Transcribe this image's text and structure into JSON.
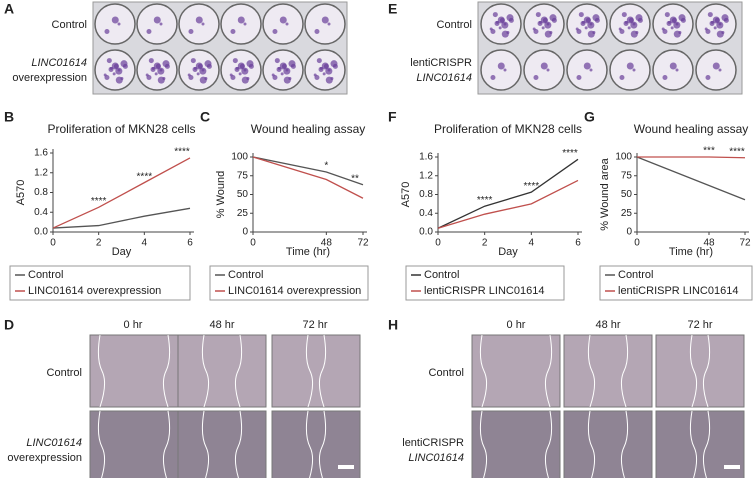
{
  "panel_letters": [
    "A",
    "B",
    "C",
    "D",
    "E",
    "F",
    "G",
    "H"
  ],
  "plate_A": {
    "rows": [
      [
        "Control"
      ],
      [
        "LINC01614",
        "overexpression"
      ]
    ]
  },
  "plate_E": {
    "rows": [
      [
        "Control"
      ],
      [
        "lentiCRISPR",
        "LINC01614"
      ]
    ]
  },
  "micro_D": {
    "columns": [
      "0 hr",
      "48 hr",
      "72 hr"
    ],
    "rows": [
      [
        "Control"
      ],
      [
        "LINC01614",
        "overexpression"
      ]
    ]
  },
  "micro_H": {
    "columns": [
      "0 hr",
      "48 hr",
      "72 hr"
    ],
    "rows": [
      [
        "Control"
      ],
      [
        "lentiCRISPR",
        "LINC01614"
      ]
    ]
  },
  "chart_data": [
    {
      "type": "line",
      "title": "Proliferation of MKN28 cells",
      "xlabel": "Day",
      "ylabel": "A570",
      "x": [
        0,
        2,
        4,
        6
      ],
      "xlim": [
        0,
        6
      ],
      "xticks": [
        0,
        2,
        4,
        6
      ],
      "ylim": [
        0,
        1.6
      ],
      "yticks": [
        {
          "value": 0,
          "label": "0.0"
        },
        0.4,
        0.8,
        1.2,
        1.6
      ],
      "series": [
        {
          "name": "Control",
          "color": "#555555",
          "values": [
            0.08,
            0.13,
            0.32,
            0.48
          ]
        },
        {
          "name": "LINC01614 overexpression",
          "color": "#c0504d",
          "values": [
            0.08,
            0.5,
            1.0,
            1.5
          ]
        }
      ],
      "annotations": [
        {
          "x": 2,
          "text": "****"
        },
        {
          "x": 4,
          "text": "****"
        },
        {
          "x": 6,
          "text": "****"
        }
      ]
    },
    {
      "type": "line",
      "title": "Wound healing assay",
      "xlabel": "Time (hr)",
      "ylabel": "% Wound",
      "x": [
        0,
        48,
        72
      ],
      "xlim": [
        0,
        72
      ],
      "xticks": [
        0,
        48,
        72
      ],
      "ylim": [
        0,
        100
      ],
      "yticks": [
        0,
        25,
        50,
        75,
        100
      ],
      "series": [
        {
          "name": "Control",
          "color": "#555555",
          "values": [
            100,
            80,
            63
          ]
        },
        {
          "name": "LINC01614 overexpression",
          "color": "#c0504d",
          "values": [
            100,
            70,
            45
          ]
        }
      ],
      "annotations": [
        {
          "x": 48,
          "text": "*"
        },
        {
          "x": 72,
          "text": "**"
        }
      ]
    },
    {
      "type": "line",
      "title": "Proliferation of MKN28 cells",
      "xlabel": "Day",
      "ylabel": "A570",
      "x": [
        0,
        2,
        4,
        6
      ],
      "xlim": [
        0,
        6
      ],
      "xticks": [
        0,
        2,
        4,
        6
      ],
      "ylim": [
        0,
        1.6
      ],
      "yticks": [
        {
          "value": 0,
          "label": "0.0"
        },
        0.4,
        0.8,
        1.2,
        1.6
      ],
      "series": [
        {
          "name": "Control",
          "color": "#333333",
          "values": [
            0.08,
            0.55,
            0.85,
            1.55
          ]
        },
        {
          "name": "lentiCRISPR LINC01614",
          "color": "#c0504d",
          "values": [
            0.08,
            0.38,
            0.6,
            1.1
          ]
        }
      ],
      "annotations": [
        {
          "x": 2,
          "text": "****"
        },
        {
          "x": 4,
          "text": "****"
        },
        {
          "x": 6,
          "text": "****"
        }
      ]
    },
    {
      "type": "line",
      "title": "Wound healing assay",
      "xlabel": "Time (hr)",
      "ylabel": "% Wound area",
      "x": [
        0,
        48,
        72
      ],
      "xlim": [
        0,
        72
      ],
      "xticks": [
        0,
        48,
        72
      ],
      "ylim": [
        0,
        100
      ],
      "yticks": [
        0,
        25,
        50,
        75,
        100
      ],
      "series": [
        {
          "name": "Control",
          "color": "#555555",
          "values": [
            100,
            62,
            43
          ]
        },
        {
          "name": "lentiCRISPR LINC01614",
          "color": "#c0504d",
          "values": [
            100,
            100,
            99
          ]
        }
      ],
      "annotations": [
        {
          "x": 48,
          "text": "***"
        },
        {
          "x": 72,
          "text": "****"
        }
      ]
    }
  ]
}
